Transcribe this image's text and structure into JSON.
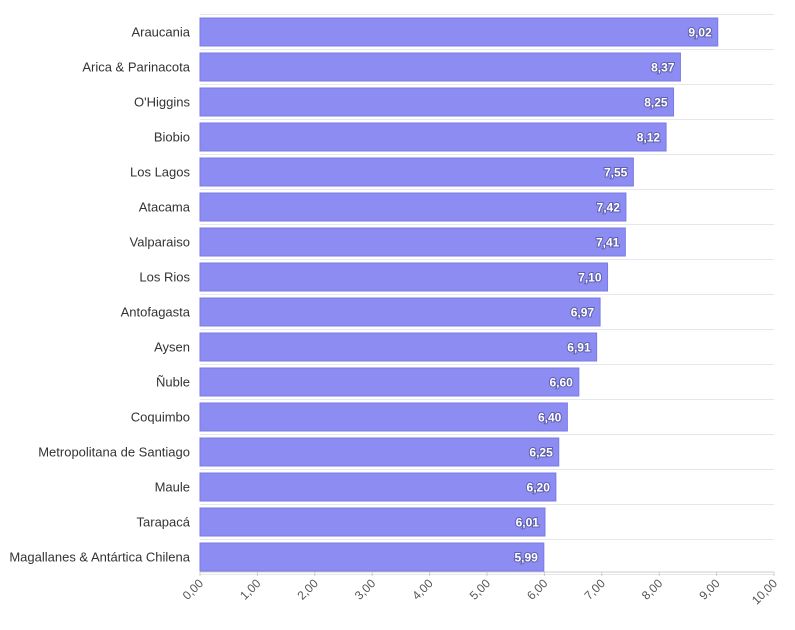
{
  "chart_data": {
    "type": "bar",
    "orientation": "horizontal",
    "categories": [
      "Araucania",
      "Arica & Parinacota",
      "O'Higgins",
      "Biobio",
      "Los Lagos",
      "Atacama",
      "Valparaiso",
      "Los Rios",
      "Antofagasta",
      "Aysen",
      "Ñuble",
      "Coquimbo",
      "Metropolitana de Santiago",
      "Maule",
      "Tarapacá",
      "Magallanes & Antártica Chilena"
    ],
    "values": [
      9.02,
      8.37,
      8.25,
      8.12,
      7.55,
      7.42,
      7.41,
      7.1,
      6.97,
      6.91,
      6.6,
      6.4,
      6.25,
      6.2,
      6.01,
      5.99
    ],
    "value_labels": [
      "9,02",
      "8,37",
      "8,25",
      "8,12",
      "7,55",
      "7,42",
      "7,41",
      "7,10",
      "6,97",
      "6,91",
      "6,60",
      "6,40",
      "6,25",
      "6,20",
      "6,01",
      "5,99"
    ],
    "x_ticks": [
      "0,00",
      "1,00",
      "2,00",
      "3,00",
      "4,00",
      "5,00",
      "6,00",
      "7,00",
      "8,00",
      "9,00",
      "10,00"
    ],
    "xlim": [
      0,
      10
    ],
    "title": "",
    "xlabel": "",
    "ylabel": "",
    "grid": true,
    "legend": false,
    "bar_color": "#8c8cf2",
    "bar_border_color": "#7a7ae6"
  }
}
